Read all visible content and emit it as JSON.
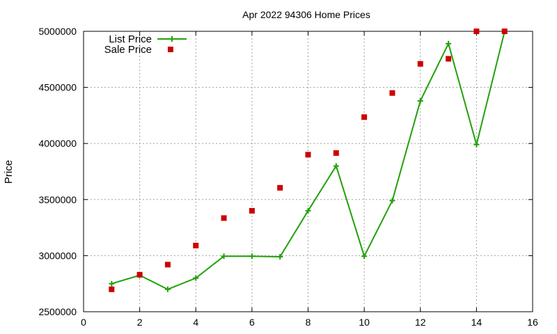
{
  "chart_data": {
    "type": "line",
    "title": "Apr 2022 94306 Home Prices",
    "xlabel": "",
    "ylabel": "Price",
    "xlim": [
      0,
      16
    ],
    "ylim": [
      2500000,
      5000000
    ],
    "x_ticks": [
      0,
      2,
      4,
      6,
      8,
      10,
      12,
      14,
      16
    ],
    "y_ticks": [
      2500000,
      3000000,
      3500000,
      4000000,
      4500000,
      5000000
    ],
    "grid": true,
    "legend_position": "top-left",
    "series": [
      {
        "name": "List Price",
        "style": "line-with-plus-markers",
        "color": "#22a00a",
        "x": [
          1,
          2,
          3,
          4,
          5,
          6,
          7,
          8,
          9,
          10,
          11,
          12,
          13,
          14,
          15
        ],
        "values": [
          2750000,
          2825000,
          2700000,
          2800000,
          2995000,
          2995000,
          2990000,
          3400000,
          3800000,
          2995000,
          3490000,
          4380000,
          4890000,
          3990000,
          4998000
        ]
      },
      {
        "name": "Sale Price",
        "style": "square-markers",
        "color": "#cc0000",
        "x": [
          1,
          2,
          3,
          4,
          5,
          6,
          7,
          8,
          9,
          10,
          11,
          12,
          13,
          14,
          15
        ],
        "values": [
          2700000,
          2830000,
          2920000,
          3090000,
          3335000,
          3400000,
          3605000,
          3900000,
          3915000,
          4235000,
          4450000,
          4710000,
          4755000,
          5000000,
          5000000
        ]
      }
    ]
  }
}
